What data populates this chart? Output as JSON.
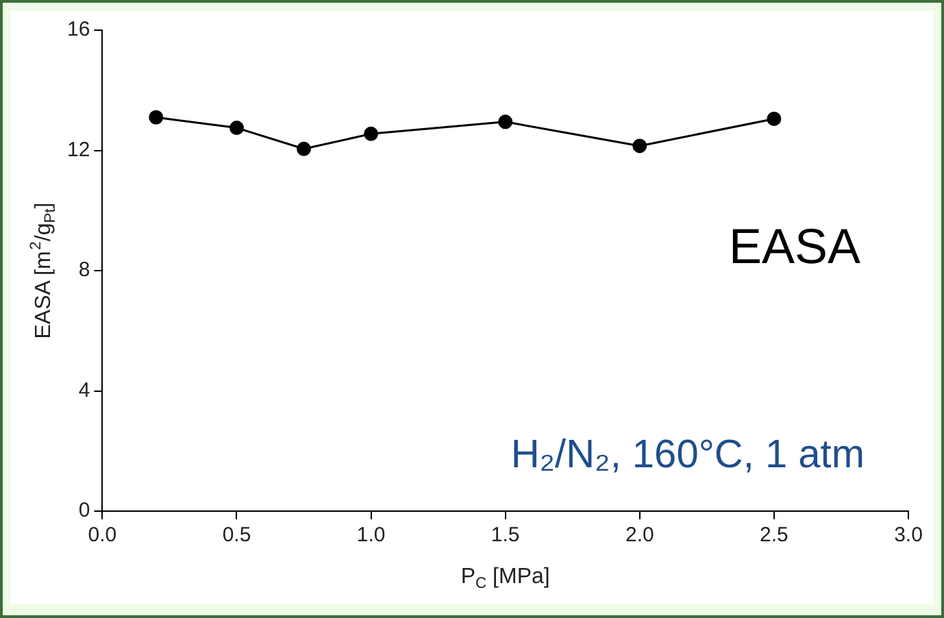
{
  "chart_data": {
    "type": "line",
    "xlabel": "P$_{C}$ [MPa]",
    "ylabel": "EASA [m$^{2}$/g$_{Pt}$]",
    "x": [
      0.2,
      0.5,
      0.75,
      1.0,
      1.5,
      2.0,
      2.5
    ],
    "series": [
      {
        "color": "#000000",
        "values": [
          13.1,
          12.75,
          12.05,
          12.55,
          12.95,
          12.15,
          13.05
        ]
      }
    ],
    "xlim": [
      0,
      3
    ],
    "xticks": [
      {
        "value": 0,
        "label": "0.0"
      },
      {
        "value": 0.5,
        "label": "0.5"
      },
      {
        "value": 1,
        "label": "1.0"
      },
      {
        "value": 1.5,
        "label": "1.5"
      },
      {
        "value": 2,
        "label": "2.0"
      },
      {
        "value": 2.5,
        "label": "2.5"
      },
      {
        "value": 3,
        "label": "3.0"
      }
    ],
    "ylim": [
      0,
      16
    ],
    "yticks": [
      0,
      4,
      8,
      12,
      16
    ],
    "grid": false,
    "legend": false,
    "marker": "circle",
    "line_style": "solid",
    "annotations": [
      "EASA",
      "H₂/N₂, 160°C, 1 atm"
    ]
  }
}
